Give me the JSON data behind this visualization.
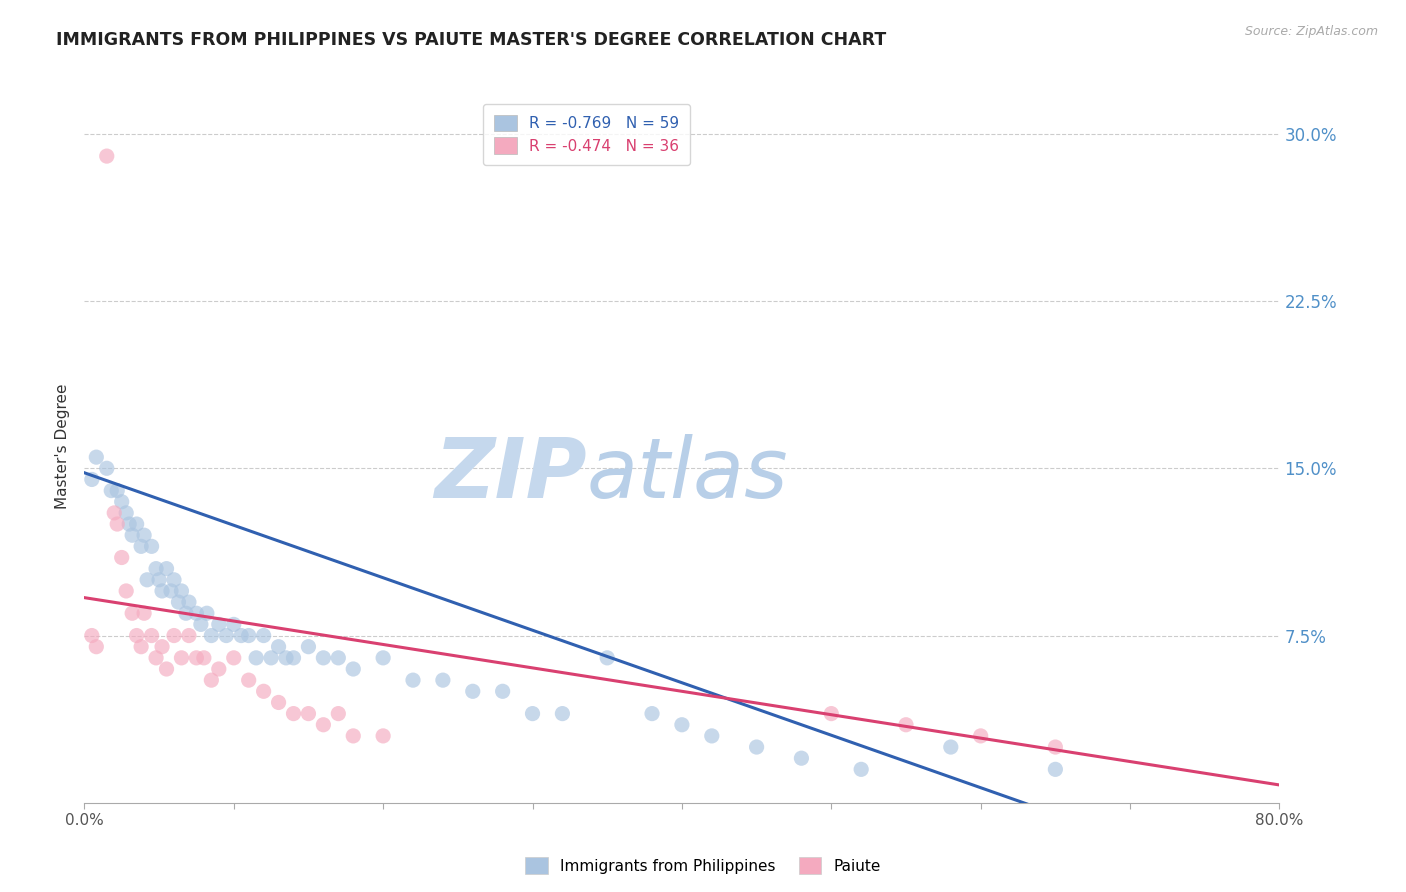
{
  "title": "IMMIGRANTS FROM PHILIPPINES VS PAIUTE MASTER'S DEGREE CORRELATION CHART",
  "source": "Source: ZipAtlas.com",
  "ylabel": "Master's Degree",
  "xlim": [
    0,
    0.8
  ],
  "ylim": [
    0,
    0.32
  ],
  "xticks": [
    0.0,
    0.1,
    0.2,
    0.3,
    0.4,
    0.5,
    0.6,
    0.7,
    0.8
  ],
  "xticklabels": [
    "0.0%",
    "",
    "",
    "",
    "",
    "",
    "",
    "",
    "80.0%"
  ],
  "yticks_right": [
    0.075,
    0.15,
    0.225,
    0.3
  ],
  "yticklabels_right": [
    "7.5%",
    "15.0%",
    "22.5%",
    "30.0%"
  ],
  "blue_R": -0.769,
  "blue_N": 59,
  "pink_R": -0.474,
  "pink_N": 36,
  "blue_color": "#aac4e0",
  "pink_color": "#f4aabf",
  "blue_line_color": "#3060b0",
  "pink_line_color": "#d94070",
  "right_tick_color": "#5090c8",
  "background_color": "#ffffff",
  "grid_color": "#cccccc",
  "watermark_zip_color": "#c5d8ed",
  "watermark_atlas_color": "#b8cfe8",
  "legend_label_blue": "Immigrants from Philippines",
  "legend_label_pink": "Paiute",
  "blue_x": [
    0.005,
    0.008,
    0.015,
    0.018,
    0.022,
    0.025,
    0.028,
    0.03,
    0.032,
    0.035,
    0.038,
    0.04,
    0.042,
    0.045,
    0.048,
    0.05,
    0.052,
    0.055,
    0.058,
    0.06,
    0.063,
    0.065,
    0.068,
    0.07,
    0.075,
    0.078,
    0.082,
    0.085,
    0.09,
    0.095,
    0.1,
    0.105,
    0.11,
    0.115,
    0.12,
    0.125,
    0.13,
    0.135,
    0.14,
    0.15,
    0.16,
    0.17,
    0.18,
    0.2,
    0.22,
    0.24,
    0.26,
    0.28,
    0.3,
    0.32,
    0.35,
    0.38,
    0.4,
    0.42,
    0.45,
    0.48,
    0.52,
    0.58,
    0.65
  ],
  "blue_y": [
    0.145,
    0.155,
    0.15,
    0.14,
    0.14,
    0.135,
    0.13,
    0.125,
    0.12,
    0.125,
    0.115,
    0.12,
    0.1,
    0.115,
    0.105,
    0.1,
    0.095,
    0.105,
    0.095,
    0.1,
    0.09,
    0.095,
    0.085,
    0.09,
    0.085,
    0.08,
    0.085,
    0.075,
    0.08,
    0.075,
    0.08,
    0.075,
    0.075,
    0.065,
    0.075,
    0.065,
    0.07,
    0.065,
    0.065,
    0.07,
    0.065,
    0.065,
    0.06,
    0.065,
    0.055,
    0.055,
    0.05,
    0.05,
    0.04,
    0.04,
    0.065,
    0.04,
    0.035,
    0.03,
    0.025,
    0.02,
    0.015,
    0.025,
    0.015
  ],
  "pink_x": [
    0.005,
    0.008,
    0.015,
    0.02,
    0.022,
    0.025,
    0.028,
    0.032,
    0.035,
    0.038,
    0.04,
    0.045,
    0.048,
    0.052,
    0.055,
    0.06,
    0.065,
    0.07,
    0.075,
    0.08,
    0.085,
    0.09,
    0.1,
    0.11,
    0.12,
    0.13,
    0.14,
    0.15,
    0.16,
    0.17,
    0.18,
    0.2,
    0.5,
    0.55,
    0.6,
    0.65
  ],
  "pink_y": [
    0.075,
    0.07,
    0.29,
    0.13,
    0.125,
    0.11,
    0.095,
    0.085,
    0.075,
    0.07,
    0.085,
    0.075,
    0.065,
    0.07,
    0.06,
    0.075,
    0.065,
    0.075,
    0.065,
    0.065,
    0.055,
    0.06,
    0.065,
    0.055,
    0.05,
    0.045,
    0.04,
    0.04,
    0.035,
    0.04,
    0.03,
    0.03,
    0.04,
    0.035,
    0.03,
    0.025
  ],
  "blue_trendline_x": [
    0.0,
    0.65
  ],
  "blue_trendline_y": [
    0.148,
    -0.005
  ],
  "pink_trendline_x": [
    0.0,
    0.8
  ],
  "pink_trendline_y": [
    0.092,
    0.008
  ]
}
